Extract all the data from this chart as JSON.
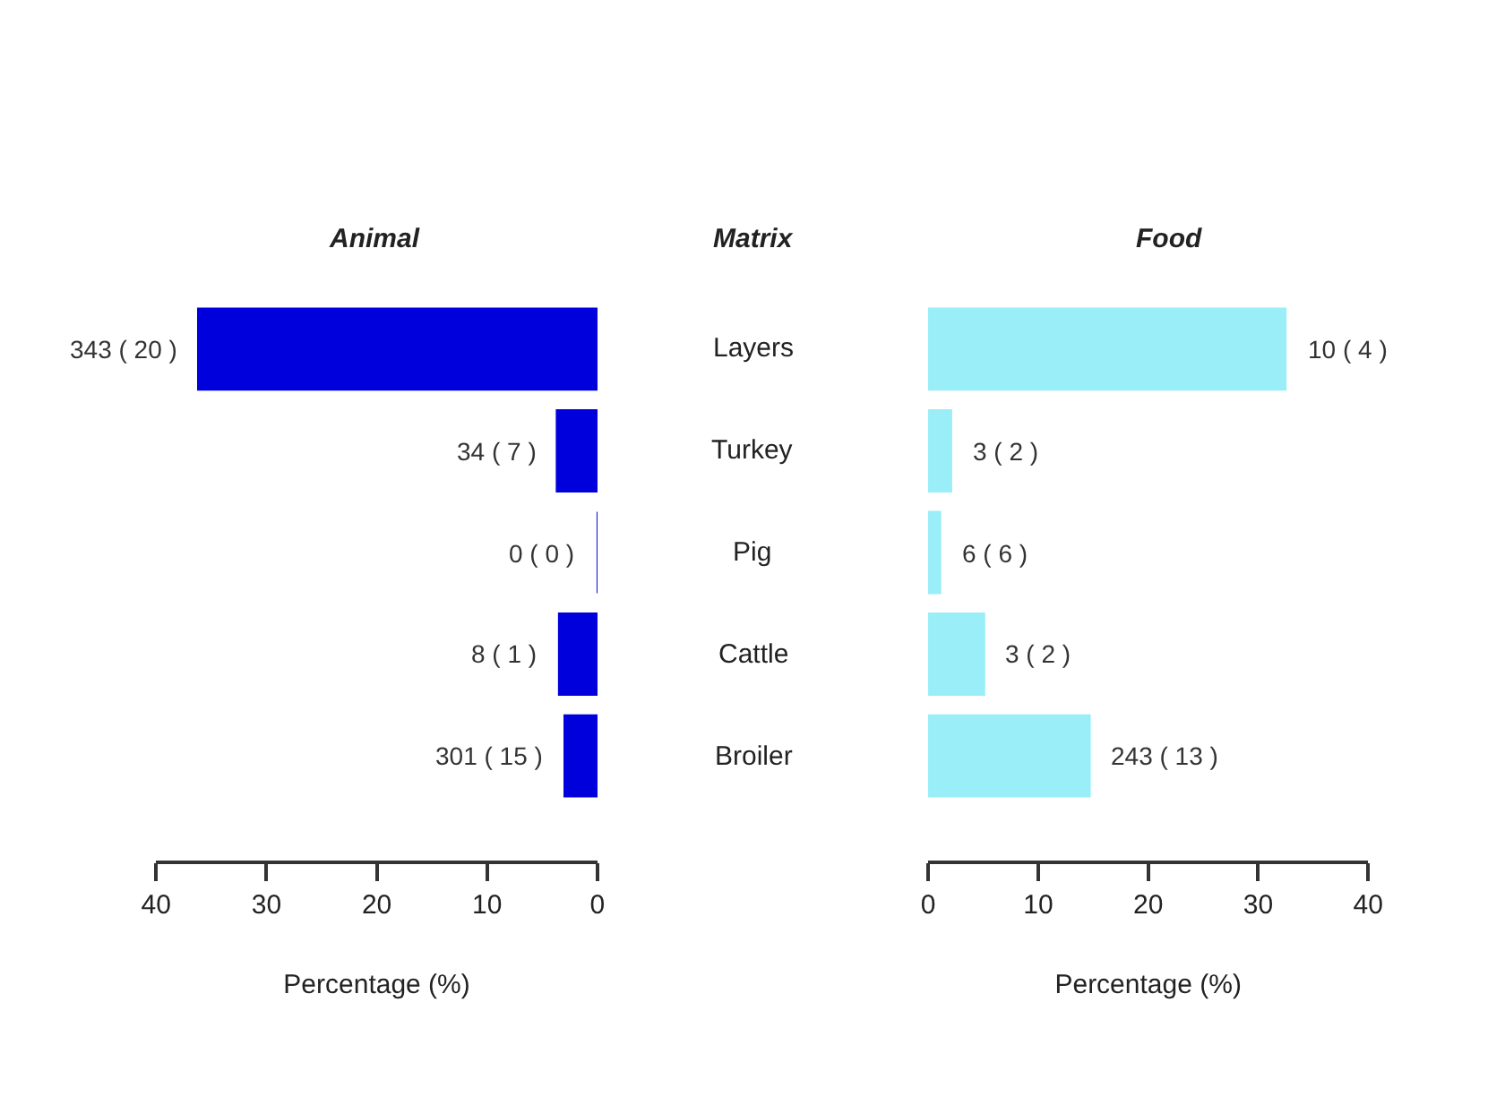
{
  "chart_data": [
    {
      "type": "bar",
      "orientation": "horizontal",
      "title": "Animal",
      "xlabel": "Percentage (%)",
      "categories": [
        "Layers",
        "Turkey",
        "Pig",
        "Cattle",
        "Broiler"
      ],
      "values": [
        36.2,
        3.7,
        0,
        3.5,
        3.0
      ],
      "color": "#0000dd",
      "annotations": [
        {
          "text": "343 ( 20 )",
          "x": 36.2,
          "y": "Layers"
        },
        {
          "text": "34 ( 7 )",
          "x": 3.7,
          "y": "Turkey"
        },
        {
          "text": "0 ( 0 )",
          "x": 0,
          "y": "Pig"
        },
        {
          "text": "8 ( 1 )",
          "x": 3.5,
          "y": "Cattle"
        },
        {
          "text": "301 ( 15 )",
          "x": 3.0,
          "y": "Broiler"
        }
      ],
      "xlim": [
        40,
        0
      ],
      "xticks": [
        40,
        30,
        20,
        10,
        0
      ],
      "tick_labels": "x"
    },
    {
      "type": "bar",
      "orientation": "horizontal",
      "title": "Food",
      "ylabel": "Matrix",
      "xlabel": "Percentage (%)",
      "categories": [
        "Layers",
        "Turkey",
        "Pig",
        "Cattle",
        "Broiler"
      ],
      "values": [
        32.5,
        2.1,
        1.1,
        5.1,
        14.7
      ],
      "color": "#99eef8",
      "annotations": [
        {
          "text": "10 ( 4 )",
          "x": 32.5,
          "y": "Layers"
        },
        {
          "text": "3 ( 2 )",
          "x": 2.1,
          "y": "Turkey"
        },
        {
          "text": "6 ( 6 )",
          "x": 1.1,
          "y": "Pig"
        },
        {
          "text": "3 ( 2 )",
          "x": 5.1,
          "y": "Cattle"
        },
        {
          "text": "243 ( 13 )",
          "x": 14.7,
          "y": "Broiler"
        }
      ],
      "xlim": [
        0,
        40
      ],
      "xticks": [
        0,
        10,
        20,
        30,
        40
      ]
    }
  ]
}
